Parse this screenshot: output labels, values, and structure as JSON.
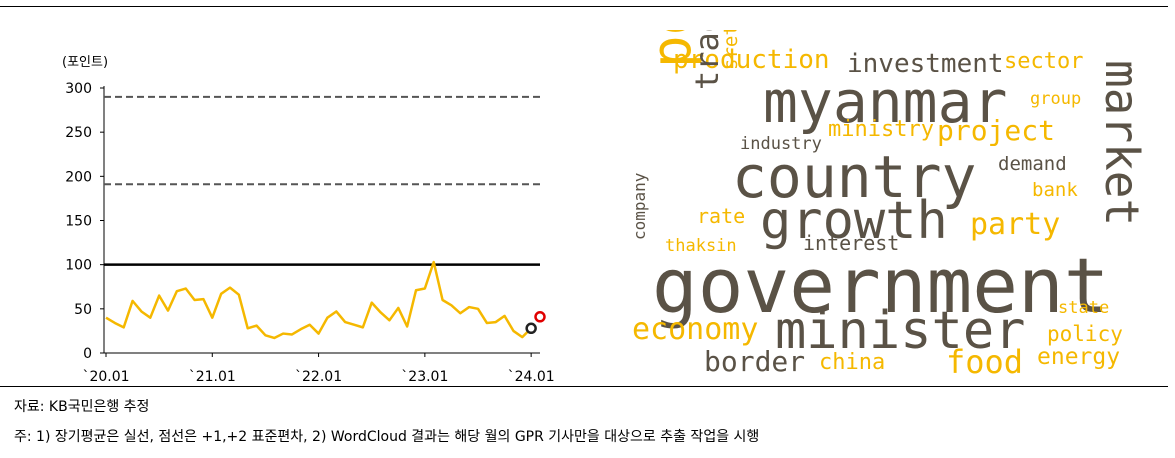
{
  "figure": {
    "source_note": "자료: KB국민은행 추정",
    "footnote": "주: 1) 장기평균은 실선, 점선은 +1,+2 표준편차, 2) WordCloud 결과는 해당 월의 GPR 기사만을 대상으로 추출 작업을 시행"
  },
  "chart_data": {
    "type": "line",
    "ylabel": "(포인트)",
    "ylim": [
      0,
      300
    ],
    "yticks": [
      0,
      50,
      100,
      150,
      200,
      250,
      300
    ],
    "xtick_labels": [
      "`20.01",
      "`21.01",
      "`22.01",
      "`23.01",
      "`24.01"
    ],
    "xtick_index": [
      0,
      12,
      24,
      36,
      48
    ],
    "x_count": 50,
    "reference_lines": [
      {
        "value": 100,
        "style": "solid"
      },
      {
        "value": 191,
        "style": "dashed"
      },
      {
        "value": 290,
        "style": "dashed"
      }
    ],
    "series": [
      {
        "color": "#F5B800",
        "values": [
          40,
          34,
          29,
          59,
          47,
          40,
          65,
          48,
          70,
          73,
          60,
          61,
          40,
          67,
          74,
          66,
          28,
          31,
          20,
          17,
          22,
          21,
          27,
          32,
          22,
          40,
          47,
          35,
          32,
          29,
          57,
          46,
          37,
          51,
          30,
          71,
          73,
          103,
          60,
          54,
          45,
          52,
          50,
          34,
          35,
          42,
          25,
          18,
          28
        ]
      }
    ],
    "markers": [
      {
        "index": 48,
        "value": 28,
        "color": "#222222"
      },
      {
        "index": 49,
        "value": 41,
        "color": "#E00000"
      }
    ],
    "grid": false
  },
  "wordcloud": {
    "colors": {
      "dark": "#5A5246",
      "gold": "#F5B800"
    },
    "words": [
      {
        "text": "production",
        "color": "gold"
      },
      {
        "text": "investment",
        "color": "dark"
      },
      {
        "text": "sector",
        "color": "gold"
      },
      {
        "text": "myanmar",
        "color": "dark"
      },
      {
        "text": "group",
        "color": "gold"
      },
      {
        "text": "market",
        "color": "dark"
      },
      {
        "text": "power",
        "color": "gold"
      },
      {
        "text": "trade",
        "color": "dark"
      },
      {
        "text": "srettha",
        "color": "gold"
      },
      {
        "text": "ministry",
        "color": "gold"
      },
      {
        "text": "project",
        "color": "gold"
      },
      {
        "text": "industry",
        "color": "dark"
      },
      {
        "text": "country",
        "color": "dark"
      },
      {
        "text": "demand",
        "color": "dark"
      },
      {
        "text": "bank",
        "color": "gold"
      },
      {
        "text": "rate",
        "color": "gold"
      },
      {
        "text": "growth",
        "color": "dark"
      },
      {
        "text": "party",
        "color": "gold"
      },
      {
        "text": "thaksin",
        "color": "gold"
      },
      {
        "text": "interest",
        "color": "dark"
      },
      {
        "text": "company",
        "color": "dark"
      },
      {
        "text": "government",
        "color": "dark"
      },
      {
        "text": "state",
        "color": "gold"
      },
      {
        "text": "economy",
        "color": "gold"
      },
      {
        "text": "minister",
        "color": "dark"
      },
      {
        "text": "policy",
        "color": "gold"
      },
      {
        "text": "border",
        "color": "dark"
      },
      {
        "text": "china",
        "color": "gold"
      },
      {
        "text": "food",
        "color": "gold"
      },
      {
        "text": "energy",
        "color": "gold"
      }
    ]
  }
}
